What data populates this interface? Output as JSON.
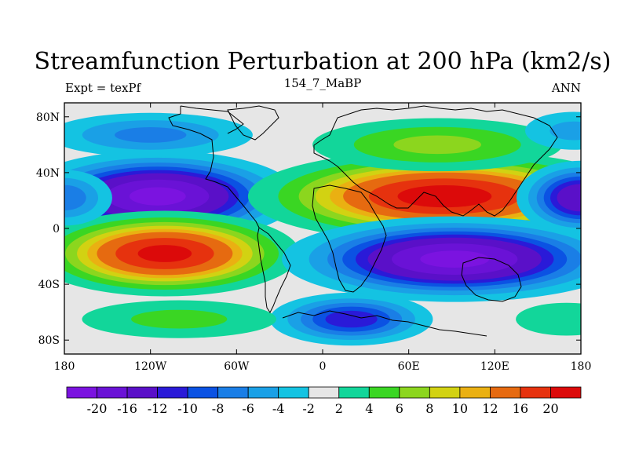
{
  "chart_data": {
    "type": "contour-map",
    "title": "Streamfunction Perturbation at 200 hPa (km2/s)",
    "left_label": "Expt = texPf",
    "center_label": "154_7_MaBP",
    "right_label": "ANN",
    "x_range": [
      -180,
      180
    ],
    "y_range": [
      -90,
      90
    ],
    "x_ticks": [
      {
        "value": -180,
        "label": "180"
      },
      {
        "value": -120,
        "label": "120W"
      },
      {
        "value": -60,
        "label": "60W"
      },
      {
        "value": 0,
        "label": "0"
      },
      {
        "value": 60,
        "label": "60E"
      },
      {
        "value": 120,
        "label": "120E"
      },
      {
        "value": 180,
        "label": "180"
      }
    ],
    "y_ticks": [
      {
        "value": 80,
        "label": "80N"
      },
      {
        "value": 40,
        "label": "40N"
      },
      {
        "value": 0,
        "label": "0"
      },
      {
        "value": -40,
        "label": "40S"
      },
      {
        "value": -80,
        "label": "80S"
      }
    ],
    "contour_levels": [
      -20,
      -16,
      -12,
      -10,
      -8,
      -6,
      -4,
      -2,
      2,
      4,
      6,
      8,
      10,
      12,
      16,
      20
    ],
    "colors": [
      "#7b13e0",
      "#6a12d6",
      "#5a10c8",
      "#2a1ad8",
      "#0b52e3",
      "#1a7ee6",
      "#1aa0e6",
      "#14c3e2",
      "#e6e6e6",
      "#12d69a",
      "#3ad623",
      "#8cd61e",
      "#d2d212",
      "#eab012",
      "#e66a10",
      "#e6320e",
      "#dc0a0a"
    ],
    "anomaly_centers": [
      {
        "lon": -115,
        "lat": 23,
        "value": -22,
        "sx": 45,
        "sy": 15
      },
      {
        "lon": -110,
        "lat": -18,
        "value": 22,
        "sx": 43,
        "sy": 14
      },
      {
        "lon": 85,
        "lat": 23,
        "value": 23,
        "sx": 62,
        "sy": 15
      },
      {
        "lon": 92,
        "lat": -22,
        "value": -22,
        "sx": 55,
        "sy": 14
      },
      {
        "lon": 20,
        "lat": -65,
        "value": -12,
        "sx": 30,
        "sy": 10
      },
      {
        "lon": -120,
        "lat": 67,
        "value": -7,
        "sx": 45,
        "sy": 10
      },
      {
        "lon": 80,
        "lat": 60,
        "value": 7,
        "sx": 55,
        "sy": 12
      },
      {
        "lon": -100,
        "lat": -65,
        "value": 5,
        "sx": 50,
        "sy": 10
      },
      {
        "lon": 180,
        "lat": 22,
        "value": -16,
        "sx": 22,
        "sy": 13
      },
      {
        "lon": -180,
        "lat": 22,
        "value": -8,
        "sx": 20,
        "sy": 12
      },
      {
        "lon": 175,
        "lat": 70,
        "value": -5,
        "sx": 25,
        "sy": 10
      },
      {
        "lon": 170,
        "lat": -65,
        "value": 4,
        "sx": 30,
        "sy": 10
      }
    ]
  }
}
